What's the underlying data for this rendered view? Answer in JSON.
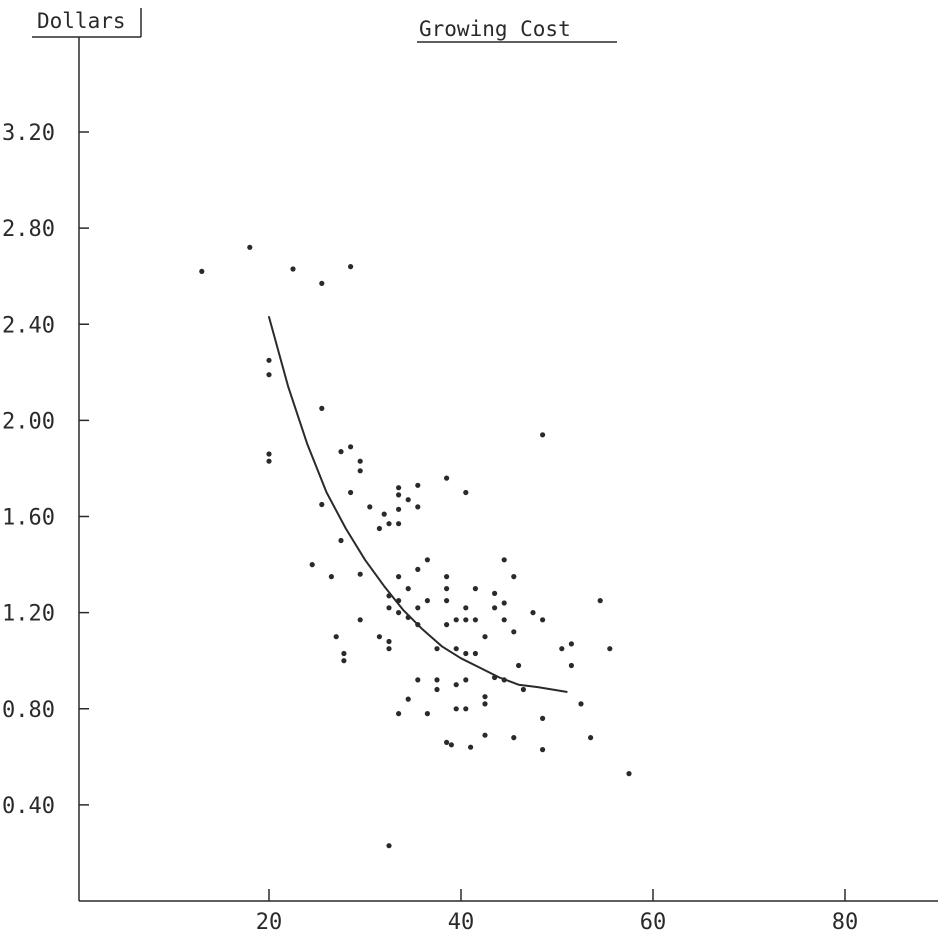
{
  "chart_data": {
    "type": "scatter",
    "title": "Growing Cost",
    "ylabel": "Dollars",
    "xlabel": "",
    "xlim": [
      0,
      90
    ],
    "ylim": [
      0,
      3.6
    ],
    "x_ticks": [
      20,
      40,
      60,
      80
    ],
    "x_tick_labels": [
      "20",
      "40",
      "60",
      "80"
    ],
    "y_ticks": [
      0.4,
      0.8,
      1.2,
      1.6,
      2.0,
      2.4,
      2.8,
      3.2
    ],
    "y_tick_labels": [
      "0.40",
      "0.80",
      "1.20",
      "1.60",
      "2.00",
      "2.40",
      "2.80",
      "3.20"
    ],
    "grid": false,
    "colors": {
      "ink": "#2a2a2a",
      "background": "#ffffff"
    },
    "series": [
      {
        "type": "scatter",
        "points": [
          [
            13.0,
            2.62
          ],
          [
            18.0,
            2.72
          ],
          [
            22.5,
            2.63
          ],
          [
            25.5,
            2.57
          ],
          [
            28.5,
            2.64
          ],
          [
            20.0,
            2.25
          ],
          [
            20.0,
            2.19
          ],
          [
            20.0,
            1.86
          ],
          [
            20.0,
            1.83
          ],
          [
            25.5,
            2.05
          ],
          [
            25.5,
            1.65
          ],
          [
            24.5,
            1.4
          ],
          [
            27.5,
            1.87
          ],
          [
            28.5,
            1.89
          ],
          [
            29.5,
            1.83
          ],
          [
            29.5,
            1.79
          ],
          [
            28.5,
            1.7
          ],
          [
            27.5,
            1.5
          ],
          [
            26.5,
            1.35
          ],
          [
            29.5,
            1.36
          ],
          [
            27.0,
            1.1
          ],
          [
            27.8,
            1.03
          ],
          [
            27.8,
            1.0
          ],
          [
            29.5,
            1.17
          ],
          [
            30.5,
            1.64
          ],
          [
            31.5,
            1.55
          ],
          [
            32.5,
            1.57
          ],
          [
            33.5,
            1.72
          ],
          [
            33.5,
            1.69
          ],
          [
            33.5,
            1.63
          ],
          [
            33.5,
            1.57
          ],
          [
            34.5,
            1.67
          ],
          [
            35.5,
            1.73
          ],
          [
            35.5,
            1.64
          ],
          [
            32.0,
            1.61
          ],
          [
            33.5,
            1.35
          ],
          [
            34.5,
            1.3
          ],
          [
            32.5,
            1.27
          ],
          [
            33.5,
            1.25
          ],
          [
            32.5,
            1.22
          ],
          [
            33.5,
            1.2
          ],
          [
            34.5,
            1.18
          ],
          [
            35.5,
            1.22
          ],
          [
            36.5,
            1.25
          ],
          [
            35.5,
            1.15
          ],
          [
            36.5,
            1.42
          ],
          [
            35.5,
            1.38
          ],
          [
            31.5,
            1.1
          ],
          [
            32.5,
            1.08
          ],
          [
            32.5,
            1.05
          ],
          [
            33.5,
            0.78
          ],
          [
            34.5,
            0.84
          ],
          [
            35.5,
            0.92
          ],
          [
            36.5,
            0.78
          ],
          [
            37.5,
            0.92
          ],
          [
            37.5,
            0.88
          ],
          [
            37.5,
            1.05
          ],
          [
            38.5,
            1.15
          ],
          [
            38.5,
            1.25
          ],
          [
            38.5,
            1.3
          ],
          [
            38.5,
            1.35
          ],
          [
            39.5,
            1.17
          ],
          [
            39.5,
            1.05
          ],
          [
            39.5,
            0.9
          ],
          [
            39.5,
            0.8
          ],
          [
            38.5,
            0.66
          ],
          [
            39.0,
            0.65
          ],
          [
            40.5,
            1.22
          ],
          [
            40.5,
            1.17
          ],
          [
            40.5,
            1.03
          ],
          [
            40.5,
            0.92
          ],
          [
            40.5,
            0.8
          ],
          [
            41.5,
            1.3
          ],
          [
            41.5,
            1.17
          ],
          [
            41.5,
            1.03
          ],
          [
            41.0,
            0.64
          ],
          [
            42.5,
            1.1
          ],
          [
            42.5,
            0.85
          ],
          [
            42.5,
            0.82
          ],
          [
            42.5,
            0.69
          ],
          [
            43.5,
            1.28
          ],
          [
            43.5,
            1.22
          ],
          [
            43.5,
            0.93
          ],
          [
            44.5,
            1.42
          ],
          [
            44.5,
            1.24
          ],
          [
            44.5,
            1.17
          ],
          [
            44.5,
            0.92
          ],
          [
            45.5,
            1.35
          ],
          [
            45.5,
            1.12
          ],
          [
            45.5,
            0.68
          ],
          [
            46.0,
            0.98
          ],
          [
            46.5,
            0.88
          ],
          [
            47.5,
            1.2
          ],
          [
            48.5,
            1.17
          ],
          [
            48.5,
            1.94
          ],
          [
            48.5,
            0.76
          ],
          [
            48.5,
            0.63
          ],
          [
            38.5,
            1.76
          ],
          [
            40.5,
            1.7
          ],
          [
            50.5,
            1.05
          ],
          [
            51.5,
            1.07
          ],
          [
            51.5,
            0.98
          ],
          [
            52.5,
            0.82
          ],
          [
            53.5,
            0.68
          ],
          [
            54.5,
            1.25
          ],
          [
            55.5,
            1.05
          ],
          [
            57.5,
            0.53
          ],
          [
            32.5,
            0.23
          ]
        ]
      },
      {
        "type": "line",
        "points": [
          [
            20.0,
            2.43
          ],
          [
            22.0,
            2.14
          ],
          [
            24.0,
            1.9
          ],
          [
            26.0,
            1.7
          ],
          [
            28.0,
            1.55
          ],
          [
            30.0,
            1.42
          ],
          [
            32.0,
            1.31
          ],
          [
            34.0,
            1.21
          ],
          [
            36.0,
            1.13
          ],
          [
            38.0,
            1.06
          ],
          [
            40.0,
            1.01
          ],
          [
            42.0,
            0.97
          ],
          [
            44.0,
            0.93
          ],
          [
            46.0,
            0.9
          ],
          [
            48.0,
            0.89
          ],
          [
            51.0,
            0.87
          ]
        ]
      }
    ]
  }
}
